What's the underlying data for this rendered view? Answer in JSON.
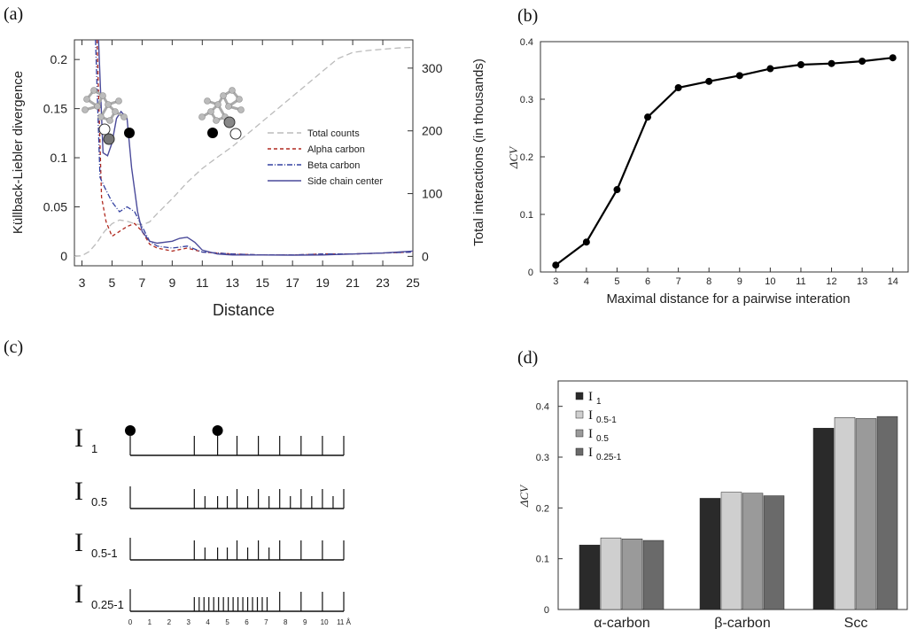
{
  "panels": {
    "a": {
      "label": "(a)"
    },
    "b": {
      "label": "(b)"
    },
    "c": {
      "label": "(c)"
    },
    "d": {
      "label": "(d)"
    }
  },
  "chart_data": [
    {
      "id": "a",
      "type": "line",
      "xlabel": "Distance",
      "ylabel": "Küllback-Liebler divergence",
      "y2label": "Total interactions (in thousands)",
      "xlim": [
        2.5,
        25
      ],
      "ylim": [
        -0.01,
        0.22
      ],
      "y2lim": [
        -15,
        345
      ],
      "xticks": [
        3,
        5,
        7,
        9,
        11,
        13,
        15,
        17,
        19,
        21,
        23,
        25
      ],
      "yticks": [
        0,
        0.05,
        0.1,
        0.15,
        0.2
      ],
      "ytick_labels": [
        "0",
        "0.05",
        "0.1",
        "0.15",
        "0.2"
      ],
      "y2ticks": [
        0,
        100,
        200,
        300
      ],
      "legend": "right",
      "series": [
        {
          "name": "Total counts",
          "axis": "right",
          "color": "#bbbbbb",
          "dash": "7,4",
          "x": [
            2.5,
            3,
            3.5,
            4,
            4.5,
            5,
            5.5,
            6,
            6.5,
            7,
            7.5,
            8,
            9,
            10,
            11,
            12,
            13,
            14,
            15,
            16,
            17,
            18,
            19,
            20,
            21,
            22,
            23,
            24,
            25
          ],
          "y": [
            0,
            1,
            8,
            22,
            40,
            52,
            58,
            56,
            52,
            50,
            55,
            68,
            92,
            118,
            140,
            158,
            175,
            195,
            215,
            235,
            255,
            275,
            295,
            315,
            325,
            328,
            330,
            332,
            333
          ]
        },
        {
          "name": "Alpha carbon",
          "axis": "left",
          "color": "#b02a20",
          "dash": "4,3",
          "x": [
            4.0,
            4.3,
            4.6,
            5.0,
            5.5,
            6.0,
            6.5,
            7.0,
            7.5,
            8.0,
            9.0,
            10.0,
            11.0,
            13.0,
            15.0,
            17.0,
            19.0,
            21.0,
            23.0,
            25.0
          ],
          "y": [
            0.22,
            0.06,
            0.035,
            0.02,
            0.025,
            0.03,
            0.033,
            0.025,
            0.012,
            0.008,
            0.005,
            0.008,
            0.004,
            0.002,
            0.001,
            0.001,
            0.002,
            0.002,
            0.003,
            0.004
          ]
        },
        {
          "name": "Beta carbon",
          "axis": "left",
          "color": "#3340a0",
          "dash": "6,2,1,2",
          "x": [
            3.9,
            4.2,
            4.5,
            5.0,
            5.5,
            6.0,
            6.5,
            7.0,
            7.5,
            8.0,
            9.0,
            10.0,
            11.0,
            13.0,
            15.0,
            17.0,
            19.0,
            21.0,
            23.0,
            25.0
          ],
          "y": [
            0.22,
            0.08,
            0.07,
            0.055,
            0.045,
            0.05,
            0.045,
            0.03,
            0.015,
            0.01,
            0.008,
            0.01,
            0.004,
            0.002,
            0.001,
            0.001,
            0.002,
            0.002,
            0.003,
            0.004
          ]
        },
        {
          "name": "Side chain center",
          "axis": "left",
          "color": "#4a4a9a",
          "dash": "",
          "x": [
            4.1,
            4.4,
            4.7,
            5.0,
            5.3,
            5.6,
            6.0,
            6.3,
            6.7,
            7.0,
            7.5,
            8.0,
            9.0,
            9.5,
            10.0,
            10.5,
            11.0,
            12.0,
            13.0,
            15.0,
            17.0,
            19.0,
            21.0,
            23.0,
            25.0
          ],
          "y": [
            0.22,
            0.105,
            0.102,
            0.115,
            0.14,
            0.147,
            0.14,
            0.09,
            0.045,
            0.025,
            0.015,
            0.013,
            0.015,
            0.018,
            0.019,
            0.014,
            0.006,
            0.002,
            0.001,
            0.001,
            0.0008,
            0.001,
            0.002,
            0.003,
            0.005
          ]
        }
      ]
    },
    {
      "id": "b",
      "type": "line",
      "xlabel": "Maximal distance for a pairwise interation",
      "ylabel": "ΔCV",
      "xlim": [
        2.5,
        14.5
      ],
      "ylim": [
        0,
        0.4
      ],
      "xticks": [
        3,
        4,
        5,
        6,
        7,
        8,
        9,
        10,
        11,
        12,
        13,
        14
      ],
      "yticks": [
        0,
        0.1,
        0.2,
        0.3,
        0.4
      ],
      "ytick_labels": [
        "0",
        "0.1",
        "0.2",
        "0.3",
        "0.4"
      ],
      "x": [
        3,
        4,
        5,
        6,
        7,
        8,
        9,
        10,
        11,
        12,
        13,
        14
      ],
      "y": [
        0.012,
        0.052,
        0.143,
        0.269,
        0.32,
        0.331,
        0.341,
        0.353,
        0.36,
        0.362,
        0.366,
        0.372
      ]
    },
    {
      "id": "d",
      "type": "bar",
      "ylabel": "ΔCV",
      "ylim": [
        0,
        0.45
      ],
      "yticks": [
        0,
        0.1,
        0.2,
        0.3,
        0.4
      ],
      "ytick_labels": [
        "0",
        "0.1",
        "0.2",
        "0.3",
        "0.4"
      ],
      "categories": [
        "α-carbon",
        "β-carbon",
        "Scc"
      ],
      "legend": "top-left",
      "series": [
        {
          "name": "I",
          "sub": "1",
          "color": "#2a2a2a",
          "values": [
            0.127,
            0.219,
            0.357
          ]
        },
        {
          "name": "I",
          "sub": "0.5-1",
          "color": "#cfcfcf",
          "values": [
            0.141,
            0.231,
            0.378
          ]
        },
        {
          "name": "I",
          "sub": "0.5",
          "color": "#9a9a9a",
          "values": [
            0.139,
            0.229,
            0.376
          ]
        },
        {
          "name": "I",
          "sub": "0.25-1",
          "color": "#6a6a6a",
          "values": [
            0.136,
            0.224,
            0.38
          ]
        }
      ]
    }
  ],
  "schematic": {
    "rows": [
      {
        "main": "I",
        "sub": "1",
        "ticks": [
          3.3,
          4.5,
          5.5,
          6.6,
          7.7,
          8.8,
          9.9,
          11
        ]
      },
      {
        "main": "I",
        "sub": "0.5",
        "ticks": [
          3.3,
          3.85,
          4.5,
          5.0,
          5.5,
          6.05,
          6.6,
          7.15,
          7.7,
          8.25,
          8.8,
          9.35,
          9.9,
          10.45,
          11
        ]
      },
      {
        "main": "I",
        "sub": "0.5-1",
        "ticks": [
          3.3,
          3.85,
          4.5,
          5.0,
          5.5,
          6.05,
          6.6,
          7.15,
          7.7,
          8.8,
          9.9,
          11
        ]
      },
      {
        "main": "I",
        "sub": "0.25-1",
        "ticks": [
          3.3,
          3.55,
          3.8,
          4.05,
          4.3,
          4.55,
          4.8,
          5.05,
          5.3,
          5.55,
          5.8,
          6.05,
          6.3,
          6.55,
          6.8,
          7.05,
          7.7,
          8.8,
          9.9,
          11
        ]
      }
    ],
    "axis_labels": [
      "0",
      "1",
      "2",
      "3",
      "4",
      "5",
      "6",
      "7",
      "8",
      "9",
      "10",
      "11 Å"
    ],
    "dot_positions": [
      0,
      4.5
    ]
  }
}
